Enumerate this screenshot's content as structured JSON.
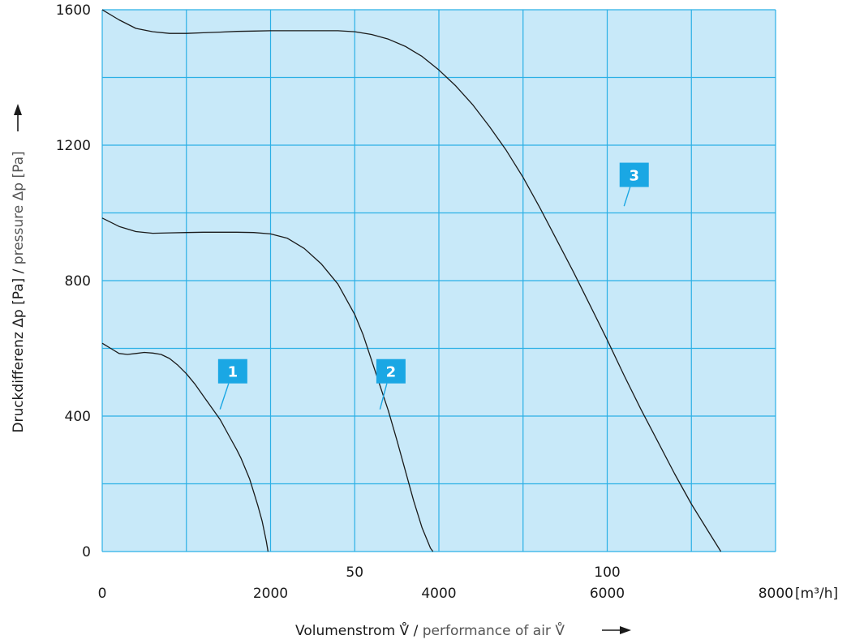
{
  "chart_data": {
    "type": "line",
    "xlabel": "Volumenstrom V̊ / performance of air V̊",
    "xlabel_parts": {
      "de": "Volumenstrom V̊",
      "sep": " / ",
      "en": "performance of air V̊"
    },
    "ylabel": "Druckdifferenz Δp [Pa] / pressure Δp [Pa]",
    "ylabel_parts": {
      "de": "Druckdifferenz Δp [Pa]",
      "sep": " / ",
      "en": "pressure Δp [Pa]"
    },
    "x_unit": "[m³/h]",
    "xlim": [
      0,
      8000
    ],
    "ylim": [
      0,
      1600
    ],
    "x_ticks": [
      0,
      2000,
      4000,
      6000,
      8000
    ],
    "x_tick_labels": [
      "0",
      "2000",
      "4000",
      "6000",
      "8000"
    ],
    "y_ticks": [
      0,
      400,
      800,
      1200,
      1600
    ],
    "y_tick_labels": [
      "0",
      "400",
      "800",
      "1200",
      "1600"
    ],
    "x_secondary_labels": [
      {
        "x": 3000,
        "label": "50"
      },
      {
        "x": 6000,
        "label": "100"
      }
    ],
    "x_grid_step": 1000,
    "y_grid_step": 200,
    "grid": true,
    "plot_background": "#c8e9f9",
    "grid_color": "#2bb0e6",
    "curve_color": "#1a1a1a",
    "badge_color": "#1aa7e4",
    "series": [
      {
        "badge": "1",
        "badge_pos": {
          "x": 1560,
          "y": 530
        },
        "badge_anchor": {
          "x": 1400,
          "y": 420
        },
        "points": [
          [
            0,
            615
          ],
          [
            100,
            600
          ],
          [
            200,
            585
          ],
          [
            300,
            582
          ],
          [
            400,
            585
          ],
          [
            500,
            588
          ],
          [
            600,
            586
          ],
          [
            700,
            582
          ],
          [
            800,
            570
          ],
          [
            900,
            550
          ],
          [
            1000,
            525
          ],
          [
            1100,
            495
          ],
          [
            1200,
            460
          ],
          [
            1300,
            425
          ],
          [
            1400,
            390
          ],
          [
            1500,
            345
          ],
          [
            1600,
            300
          ],
          [
            1650,
            275
          ],
          [
            1700,
            245
          ],
          [
            1750,
            215
          ],
          [
            1800,
            175
          ],
          [
            1850,
            135
          ],
          [
            1900,
            90
          ],
          [
            1950,
            30
          ],
          [
            1970,
            0
          ]
        ]
      },
      {
        "badge": "2",
        "badge_pos": {
          "x": 3440,
          "y": 530
        },
        "badge_anchor": {
          "x": 3300,
          "y": 420
        },
        "points": [
          [
            0,
            985
          ],
          [
            200,
            960
          ],
          [
            400,
            945
          ],
          [
            600,
            940
          ],
          [
            800,
            941
          ],
          [
            1000,
            942
          ],
          [
            1200,
            943
          ],
          [
            1400,
            943
          ],
          [
            1600,
            943
          ],
          [
            1800,
            942
          ],
          [
            2000,
            938
          ],
          [
            2200,
            925
          ],
          [
            2400,
            895
          ],
          [
            2600,
            850
          ],
          [
            2800,
            790
          ],
          [
            3000,
            700
          ],
          [
            3100,
            640
          ],
          [
            3200,
            565
          ],
          [
            3300,
            490
          ],
          [
            3400,
            415
          ],
          [
            3500,
            330
          ],
          [
            3600,
            240
          ],
          [
            3700,
            150
          ],
          [
            3800,
            70
          ],
          [
            3900,
            10
          ],
          [
            3930,
            0
          ]
        ]
      },
      {
        "badge": "3",
        "badge_pos": {
          "x": 6330,
          "y": 1110
        },
        "badge_anchor": {
          "x": 6200,
          "y": 1020
        },
        "points": [
          [
            0,
            1600
          ],
          [
            200,
            1570
          ],
          [
            400,
            1545
          ],
          [
            600,
            1535
          ],
          [
            800,
            1530
          ],
          [
            1000,
            1530
          ],
          [
            1200,
            1532
          ],
          [
            1400,
            1534
          ],
          [
            1600,
            1536
          ],
          [
            1800,
            1537
          ],
          [
            2000,
            1538
          ],
          [
            2200,
            1538
          ],
          [
            2400,
            1538
          ],
          [
            2600,
            1538
          ],
          [
            2800,
            1538
          ],
          [
            3000,
            1535
          ],
          [
            3200,
            1527
          ],
          [
            3400,
            1513
          ],
          [
            3600,
            1492
          ],
          [
            3800,
            1462
          ],
          [
            4000,
            1422
          ],
          [
            4200,
            1375
          ],
          [
            4400,
            1320
          ],
          [
            4600,
            1255
          ],
          [
            4800,
            1185
          ],
          [
            5000,
            1105
          ],
          [
            5200,
            1015
          ],
          [
            5400,
            920
          ],
          [
            5600,
            825
          ],
          [
            5800,
            725
          ],
          [
            6000,
            625
          ],
          [
            6200,
            520
          ],
          [
            6400,
            420
          ],
          [
            6600,
            325
          ],
          [
            6800,
            230
          ],
          [
            7000,
            140
          ],
          [
            7200,
            60
          ],
          [
            7350,
            0
          ]
        ]
      }
    ]
  }
}
